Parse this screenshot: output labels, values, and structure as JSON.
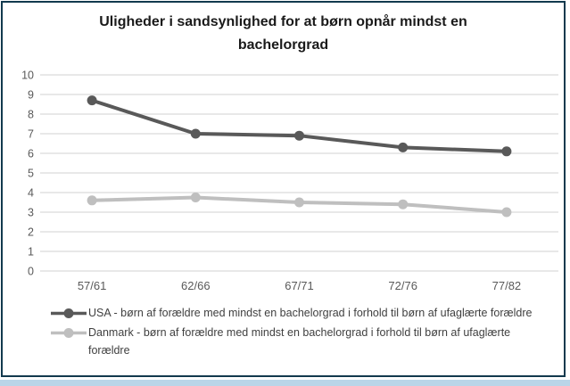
{
  "frame": {
    "border_color": "#12394e",
    "bottom_strip_color": "#bad5e8",
    "background": "#ffffff"
  },
  "chart_data": {
    "type": "line",
    "title": "Uligheder i sandsynlighed for at børn opnår mindst en bachelorgrad",
    "categories": [
      "57/61",
      "62/66",
      "67/71",
      "72/76",
      "77/82"
    ],
    "series": [
      {
        "name": "USA - børn af forældre med mindst en bachelorgrad i forhold til børn af ufaglærte forældre",
        "values": [
          8.7,
          7.0,
          6.9,
          6.3,
          6.1
        ],
        "color": "#595959"
      },
      {
        "name": "Danmark - børn af forældre med mindst en bachelorgrad i forhold til børn af ufaglærte forældre",
        "values": [
          3.6,
          3.75,
          3.5,
          3.4,
          3.0
        ],
        "color": "#bfbfbf"
      }
    ],
    "ylim": [
      0,
      10
    ],
    "yticks": [
      0,
      1,
      2,
      3,
      4,
      5,
      6,
      7,
      8,
      9,
      10
    ],
    "xlabel": "",
    "ylabel": "",
    "grid": true,
    "gridline_color": "#d9d9d9",
    "tick_label_color": "#595959",
    "legend_position": "bottom",
    "legend_text_color": "#404040",
    "title_color": "#1a1a1a"
  }
}
